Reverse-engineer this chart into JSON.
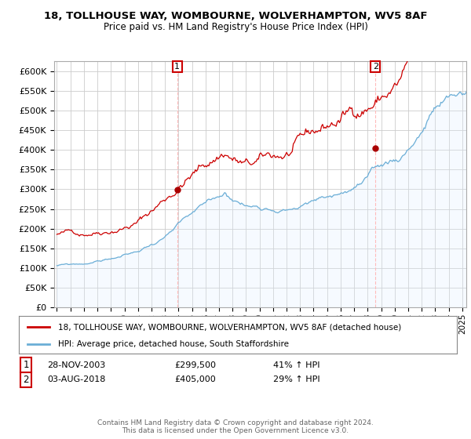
{
  "title": "18, TOLLHOUSE WAY, WOMBOURNE, WOLVERHAMPTON, WV5 8AF",
  "subtitle": "Price paid vs. HM Land Registry's House Price Index (HPI)",
  "ylim": [
    0,
    625000
  ],
  "yticks": [
    0,
    50000,
    100000,
    150000,
    200000,
    250000,
    300000,
    350000,
    400000,
    450000,
    500000,
    550000,
    600000
  ],
  "xlim_start": 1994.8,
  "xlim_end": 2025.3,
  "sale1_date": 2003.91,
  "sale1_price": 299500,
  "sale1_label": "1",
  "sale2_date": 2018.58,
  "sale2_price": 405000,
  "sale2_label": "2",
  "legend_red": "18, TOLLHOUSE WAY, WOMBOURNE, WOLVERHAMPTON, WV5 8AF (detached house)",
  "legend_blue": "HPI: Average price, detached house, South Staffordshire",
  "footer": "Contains HM Land Registry data © Crown copyright and database right 2024.\nThis data is licensed under the Open Government Licence v3.0.",
  "red_color": "#cc0000",
  "blue_color": "#6baed6",
  "blue_fill": "#ddeeff",
  "grid_color": "#cccccc",
  "bg_color": "#ffffff",
  "dashed_color": "#ffaaaa"
}
